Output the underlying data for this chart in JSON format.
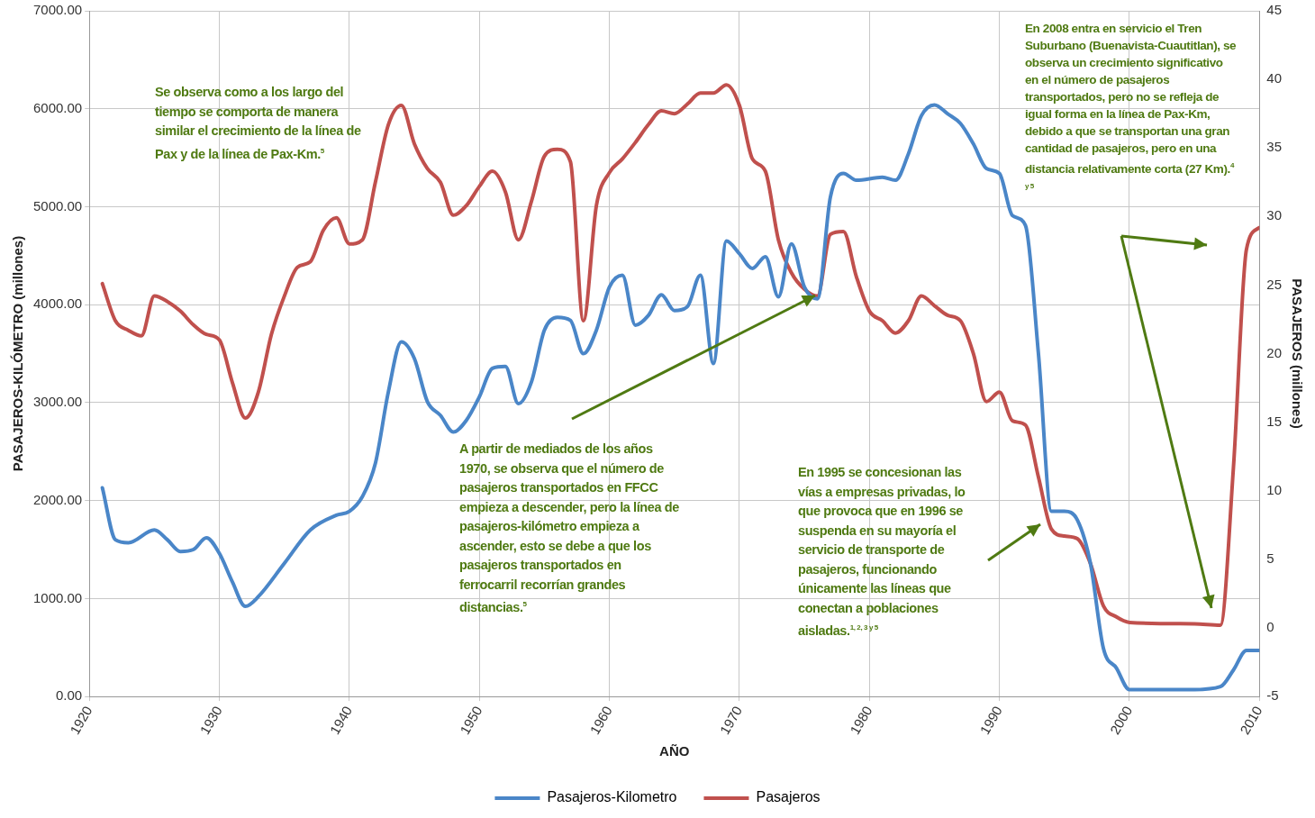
{
  "chart_data": {
    "type": "line",
    "xlabel": "AÑO",
    "ylabel": "PASAJEROS-KILÓMETRO (millones)",
    "y2label": "PASAJEROS (millones)",
    "xlim": [
      1920,
      2010
    ],
    "xticks": [
      1920,
      1930,
      1940,
      1950,
      1960,
      1970,
      1980,
      1990,
      2000,
      2010
    ],
    "ylim": [
      0,
      7000
    ],
    "yticks": [
      {
        "value": 0,
        "label": "0.00"
      },
      {
        "value": 1000,
        "label": "1000.00"
      },
      {
        "value": 2000,
        "label": "2000.00"
      },
      {
        "value": 3000,
        "label": "3000.00"
      },
      {
        "value": 4000,
        "label": "4000.00"
      },
      {
        "value": 5000,
        "label": "5000.00"
      },
      {
        "value": 6000,
        "label": "6000.00"
      },
      {
        "value": 7000,
        "label": "7000.00"
      }
    ],
    "y2lim": [
      -5,
      45
    ],
    "y2ticks": [
      -5,
      0,
      5,
      10,
      15,
      20,
      25,
      30,
      35,
      40,
      45
    ],
    "grid": true,
    "legend": "bottom",
    "marker": "none",
    "series": [
      {
        "name": "Pasajeros-Kilometro",
        "color": "#4a86c8",
        "x": [
          1921,
          1922,
          1923,
          1925,
          1926,
          1927,
          1928,
          1929,
          1930,
          1931,
          1932,
          1933,
          1935,
          1937,
          1939,
          1940,
          1941,
          1942,
          1943,
          1944,
          1945,
          1946,
          1947,
          1948,
          1949,
          1950,
          1951,
          1952,
          1953,
          1954,
          1955,
          1956,
          1957,
          1958,
          1959,
          1960,
          1961,
          1962,
          1963,
          1964,
          1965,
          1966,
          1967,
          1968,
          1969,
          1970,
          1971,
          1972,
          1973,
          1974,
          1975,
          1976,
          1977,
          1978,
          1979,
          1981,
          1982,
          1983,
          1984,
          1985,
          1986,
          1987,
          1988,
          1989,
          1990,
          1991,
          1992,
          1993,
          1994,
          1995,
          1996,
          1997,
          1998,
          1999,
          2000,
          2002,
          2005,
          2007,
          2008,
          2009,
          2010
        ],
        "values": [
          2130,
          1600,
          1570,
          1700,
          1600,
          1480,
          1500,
          1620,
          1460,
          1170,
          920,
          1020,
          1360,
          1700,
          1850,
          1890,
          2040,
          2380,
          3110,
          3620,
          3450,
          3010,
          2870,
          2700,
          2820,
          3060,
          3350,
          3370,
          2990,
          3210,
          3740,
          3870,
          3840,
          3500,
          3740,
          4180,
          4300,
          3790,
          3890,
          4100,
          3940,
          3980,
          4300,
          3400,
          4650,
          4520,
          4370,
          4490,
          4080,
          4620,
          4180,
          4060,
          5100,
          5340,
          5270,
          5300,
          5270,
          5540,
          5930,
          6040,
          5950,
          5850,
          5640,
          5390,
          5340,
          4910,
          4810,
          3500,
          1890,
          1890,
          1800,
          1360,
          490,
          290,
          70,
          70,
          70,
          100,
          270,
          470,
          470
        ]
      },
      {
        "name": "Pasajeros",
        "color": "#c0504d",
        "axis": "y2",
        "x": [
          1921,
          1922,
          1923,
          1924,
          1925,
          1926,
          1927,
          1928,
          1929,
          1930,
          1931,
          1932,
          1933,
          1934,
          1935,
          1936,
          1937,
          1938,
          1939,
          1940,
          1941,
          1942,
          1943,
          1944,
          1945,
          1946,
          1947,
          1948,
          1949,
          1950,
          1951,
          1952,
          1953,
          1954,
          1955,
          1956,
          1957,
          1958,
          1959,
          1960,
          1961,
          1962,
          1963,
          1964,
          1965,
          1966,
          1967,
          1968,
          1969,
          1970,
          1971,
          1972,
          1973,
          1974,
          1975,
          1976,
          1977,
          1978,
          1979,
          1980,
          1981,
          1982,
          1983,
          1984,
          1985,
          1986,
          1987,
          1988,
          1989,
          1990,
          1991,
          1992,
          1993,
          1994,
          1995,
          1996,
          1997,
          1998,
          1999,
          2000,
          2005,
          2007,
          2008,
          2009,
          2010
        ],
        "values": [
          25.1,
          22.4,
          21.7,
          21.3,
          24.2,
          23.8,
          23.1,
          22.1,
          21.4,
          21.0,
          17.9,
          15.3,
          17.2,
          21.4,
          24.2,
          26.3,
          26.7,
          29.0,
          29.9,
          28.0,
          28.3,
          32.5,
          36.7,
          38.1,
          35.3,
          33.5,
          32.5,
          30.1,
          30.8,
          32.2,
          33.3,
          31.8,
          28.3,
          31.1,
          34.4,
          34.9,
          34.0,
          22.4,
          30.8,
          33.2,
          34.2,
          35.4,
          36.7,
          37.7,
          37.5,
          38.2,
          39.0,
          39.0,
          39.6,
          38.1,
          34.2,
          33.3,
          28.3,
          25.9,
          24.7,
          24.2,
          28.7,
          28.9,
          25.6,
          23.1,
          22.4,
          21.5,
          22.4,
          24.2,
          23.5,
          22.8,
          22.4,
          20.0,
          16.5,
          17.2,
          15.1,
          14.8,
          11.0,
          7.2,
          6.7,
          6.5,
          4.7,
          1.6,
          0.8,
          0.4,
          0.3,
          0.2,
          11.7,
          27.6,
          29.2
        ]
      }
    ],
    "annotations": [
      "Se observa como a los largo del tiempo se comporta de manera similar el crecimiento de la línea  de Pax y de la línea de Pax-Km.$^{5}$",
      "A partir de mediados de los años 1970, se observa que el número de pasajeros transportados en FFCC empieza a descender, pero la línea de pasajeros-kilómetro empieza a ascender, esto se debe a que los pasajeros transportados en ferrocarril recorrían grandes distancias.$^{5}$",
      "En 1995 se concesionan las vías a empresas privadas, lo que provoca que en 1996 se suspenda en su mayoría el servicio de transporte de pasajeros, funcionando únicamente las líneas que conectan a poblaciones aisladas.$^{1, 2, 3 y 5}$",
      "En 2008 entra en servicio el Tren Suburbano (Buenavista-Cuautitlan), se observa un crecimiento significativo en el número de pasajeros transportados, pero no se refleja de igual forma en la línea de Pax-Km, debido a que se transportan una gran cantidad de pasajeros, pero en una distancia relativamente corta (27 Km).$^{4 y 5}$"
    ]
  }
}
